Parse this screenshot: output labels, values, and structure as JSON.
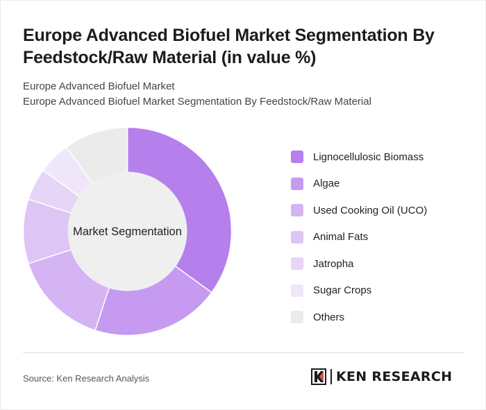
{
  "header": {
    "title": "Europe Advanced Biofuel Market Segmentation By Feedstock/Raw Material (in value %)",
    "subtitle_line1": "Europe Advanced Biofuel Market",
    "subtitle_line2": "Europe Advanced Biofuel Market Segmentation By Feedstock/Raw Material"
  },
  "chart_data": {
    "type": "pie",
    "center_label": "Market Segmentation",
    "categories": [
      "Lignocellulosic Biomass",
      "Algae",
      "Used Cooking Oil (UCO)",
      "Animal Fats",
      "Jatropha",
      "Sugar Crops",
      "Others"
    ],
    "values": [
      35,
      20,
      15,
      10,
      5,
      5,
      10
    ],
    "colors": [
      "#b57fec",
      "#c59af0",
      "#d4b4f3",
      "#ddc5f5",
      "#e6d5f7",
      "#efe6f9",
      "#ebebeb"
    ],
    "legend_position": "right"
  },
  "footer": {
    "source": "Source: Ken Research Analysis",
    "logo_text": "KEN RESEARCH"
  }
}
